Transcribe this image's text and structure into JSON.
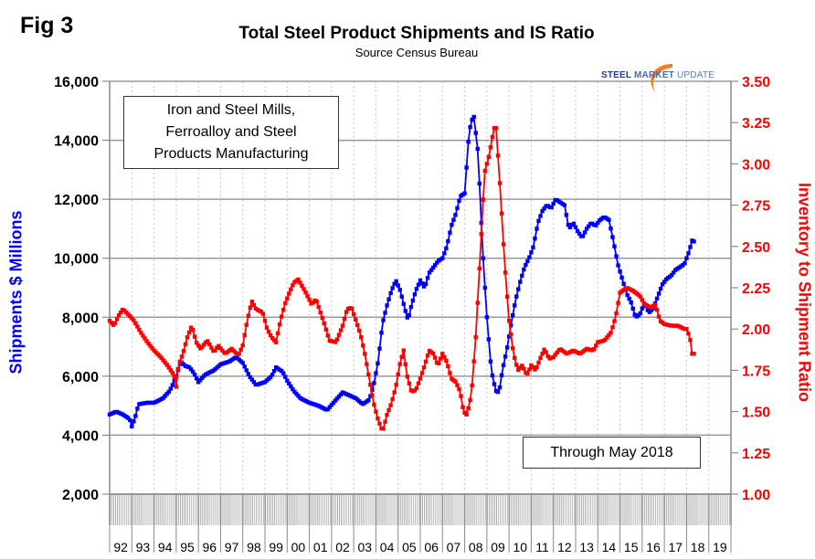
{
  "header": {
    "fig_label": "Fig 3",
    "title": "Total Steel Product Shipments and IS Ratio",
    "subtitle": "Source Census Bureau",
    "logo": {
      "word1": "STEEL",
      "word2": "MARKET",
      "word3": "UPDATE"
    }
  },
  "annotations": {
    "industry_box": [
      "Iron and Steel Mills,",
      "Ferroalloy and Steel",
      "Products Manufacturing"
    ],
    "through_box": "Through May 2018"
  },
  "colors": {
    "shipments": "#0000ff",
    "ratio": "#ff0000",
    "grid": "#999999"
  },
  "chart_data": {
    "type": "line",
    "title": "Total Steel Product Shipments and IS Ratio",
    "subtitle": "Source Census Bureau",
    "ylabel": "Shipments $ Millions",
    "y2label": "Inventory to Shipment Ratio",
    "ylim": [
      2000,
      16000
    ],
    "y2lim": [
      1.0,
      3.5
    ],
    "yticks": [
      "2,000",
      "4,000",
      "6,000",
      "8,000",
      "10,000",
      "12,000",
      "14,000",
      "16,000"
    ],
    "y2ticks": [
      "1.00",
      "1.25",
      "1.50",
      "1.75",
      "2.00",
      "2.25",
      "2.50",
      "2.75",
      "3.00",
      "3.25",
      "3.50"
    ],
    "xticks": [
      "92",
      "93",
      "94",
      "95",
      "96",
      "97",
      "98",
      "99",
      "00",
      "01",
      "02",
      "03",
      "04",
      "05",
      "06",
      "07",
      "08",
      "09",
      "10",
      "11",
      "12",
      "13",
      "14",
      "15",
      "16",
      "17",
      "18",
      "19"
    ],
    "xrange": [
      1992,
      2020
    ],
    "grid": true,
    "legend": "none",
    "series": [
      {
        "name": "Shipments $ Millions",
        "axis": "left",
        "color": "#0000ff",
        "points": [
          [
            1992.0,
            4700
          ],
          [
            1992.3,
            4800
          ],
          [
            1992.6,
            4700
          ],
          [
            1992.9,
            4550
          ],
          [
            1993.0,
            4300
          ],
          [
            1993.15,
            4600
          ],
          [
            1993.3,
            5050
          ],
          [
            1993.7,
            5100
          ],
          [
            1994.0,
            5100
          ],
          [
            1994.4,
            5250
          ],
          [
            1994.7,
            5500
          ],
          [
            1994.9,
            5800
          ],
          [
            1995.0,
            6000
          ],
          [
            1995.2,
            6500
          ],
          [
            1995.4,
            6350
          ],
          [
            1995.6,
            6300
          ],
          [
            1995.8,
            6100
          ],
          [
            1996.0,
            5800
          ],
          [
            1996.3,
            6050
          ],
          [
            1996.7,
            6200
          ],
          [
            1997.0,
            6400
          ],
          [
            1997.4,
            6500
          ],
          [
            1997.7,
            6650
          ],
          [
            1998.0,
            6450
          ],
          [
            1998.3,
            6000
          ],
          [
            1998.6,
            5700
          ],
          [
            1999.0,
            5800
          ],
          [
            1999.3,
            6000
          ],
          [
            1999.5,
            6300
          ],
          [
            1999.8,
            6150
          ],
          [
            2000.0,
            5850
          ],
          [
            2000.3,
            5500
          ],
          [
            2000.6,
            5250
          ],
          [
            2001.0,
            5100
          ],
          [
            2001.4,
            5000
          ],
          [
            2001.8,
            4850
          ],
          [
            2002.2,
            5200
          ],
          [
            2002.5,
            5450
          ],
          [
            2002.8,
            5350
          ],
          [
            2003.1,
            5250
          ],
          [
            2003.4,
            5050
          ],
          [
            2003.7,
            5200
          ],
          [
            2003.9,
            5700
          ],
          [
            2004.1,
            6500
          ],
          [
            2004.3,
            7800
          ],
          [
            2004.5,
            8400
          ],
          [
            2004.7,
            8900
          ],
          [
            2004.9,
            9250
          ],
          [
            2005.1,
            8900
          ],
          [
            2005.3,
            8300
          ],
          [
            2005.45,
            7900
          ],
          [
            2005.6,
            8400
          ],
          [
            2005.8,
            8900
          ],
          [
            2006.0,
            9250
          ],
          [
            2006.2,
            9000
          ],
          [
            2006.4,
            9500
          ],
          [
            2006.6,
            9700
          ],
          [
            2006.8,
            9900
          ],
          [
            2007.0,
            10000
          ],
          [
            2007.2,
            10400
          ],
          [
            2007.4,
            11100
          ],
          [
            2007.6,
            11500
          ],
          [
            2007.8,
            12100
          ],
          [
            2008.0,
            12200
          ],
          [
            2008.2,
            14300
          ],
          [
            2008.4,
            14900
          ],
          [
            2008.6,
            13600
          ],
          [
            2008.8,
            10400
          ],
          [
            2009.0,
            8000
          ],
          [
            2009.2,
            6200
          ],
          [
            2009.4,
            5500
          ],
          [
            2009.55,
            5450
          ],
          [
            2009.7,
            6200
          ],
          [
            2009.9,
            6900
          ],
          [
            2010.1,
            7800
          ],
          [
            2010.3,
            8600
          ],
          [
            2010.5,
            9200
          ],
          [
            2010.7,
            9700
          ],
          [
            2010.9,
            10000
          ],
          [
            2011.1,
            10400
          ],
          [
            2011.3,
            11200
          ],
          [
            2011.5,
            11600
          ],
          [
            2011.7,
            11800
          ],
          [
            2011.9,
            11700
          ],
          [
            2012.1,
            12000
          ],
          [
            2012.3,
            11900
          ],
          [
            2012.5,
            11800
          ],
          [
            2012.7,
            11000
          ],
          [
            2012.9,
            11200
          ],
          [
            2013.1,
            10900
          ],
          [
            2013.3,
            10700
          ],
          [
            2013.5,
            11000
          ],
          [
            2013.7,
            11200
          ],
          [
            2013.9,
            11100
          ],
          [
            2014.1,
            11300
          ],
          [
            2014.3,
            11400
          ],
          [
            2014.5,
            11300
          ],
          [
            2014.7,
            10600
          ],
          [
            2014.9,
            9800
          ],
          [
            2015.1,
            9300
          ],
          [
            2015.3,
            8800
          ],
          [
            2015.5,
            8500
          ],
          [
            2015.7,
            8000
          ],
          [
            2015.9,
            8100
          ],
          [
            2016.1,
            8500
          ],
          [
            2016.3,
            8150
          ],
          [
            2016.5,
            8300
          ],
          [
            2016.7,
            8700
          ],
          [
            2016.9,
            9100
          ],
          [
            2017.1,
            9300
          ],
          [
            2017.3,
            9400
          ],
          [
            2017.5,
            9600
          ],
          [
            2017.7,
            9700
          ],
          [
            2017.9,
            9800
          ],
          [
            2018.1,
            10200
          ],
          [
            2018.25,
            10600
          ],
          [
            2018.38,
            10550
          ]
        ]
      },
      {
        "name": "Inventory to Shipment Ratio",
        "axis": "right",
        "color": "#ff0000",
        "points": [
          [
            1992.0,
            2.05
          ],
          [
            1992.2,
            2.02
          ],
          [
            1992.4,
            2.08
          ],
          [
            1992.6,
            2.12
          ],
          [
            1992.9,
            2.08
          ],
          [
            1993.1,
            2.05
          ],
          [
            1993.4,
            1.98
          ],
          [
            1993.7,
            1.92
          ],
          [
            1994.0,
            1.87
          ],
          [
            1994.3,
            1.83
          ],
          [
            1994.6,
            1.78
          ],
          [
            1994.9,
            1.72
          ],
          [
            1995.0,
            1.65
          ],
          [
            1995.1,
            1.78
          ],
          [
            1995.3,
            1.85
          ],
          [
            1995.5,
            1.95
          ],
          [
            1995.7,
            2.02
          ],
          [
            1995.9,
            1.92
          ],
          [
            1996.1,
            1.88
          ],
          [
            1996.4,
            1.93
          ],
          [
            1996.7,
            1.86
          ],
          [
            1996.9,
            1.9
          ],
          [
            1997.2,
            1.85
          ],
          [
            1997.5,
            1.88
          ],
          [
            1997.8,
            1.84
          ],
          [
            1998.0,
            1.9
          ],
          [
            1998.2,
            2.05
          ],
          [
            1998.4,
            2.17
          ],
          [
            1998.6,
            2.12
          ],
          [
            1998.9,
            2.1
          ],
          [
            1999.1,
            2.0
          ],
          [
            1999.3,
            1.95
          ],
          [
            1999.5,
            1.92
          ],
          [
            1999.7,
            2.05
          ],
          [
            1999.9,
            2.15
          ],
          [
            2000.1,
            2.22
          ],
          [
            2000.3,
            2.28
          ],
          [
            2000.5,
            2.3
          ],
          [
            2000.8,
            2.23
          ],
          [
            2001.1,
            2.15
          ],
          [
            2001.3,
            2.18
          ],
          [
            2001.5,
            2.1
          ],
          [
            2001.7,
            2.02
          ],
          [
            2001.9,
            1.93
          ],
          [
            2002.2,
            1.92
          ],
          [
            2002.5,
            2.02
          ],
          [
            2002.7,
            2.12
          ],
          [
            2002.9,
            2.13
          ],
          [
            2003.1,
            2.05
          ],
          [
            2003.3,
            1.97
          ],
          [
            2003.5,
            1.85
          ],
          [
            2003.7,
            1.7
          ],
          [
            2003.9,
            1.55
          ],
          [
            2004.1,
            1.45
          ],
          [
            2004.3,
            1.38
          ],
          [
            2004.5,
            1.48
          ],
          [
            2004.7,
            1.55
          ],
          [
            2004.9,
            1.65
          ],
          [
            2005.1,
            1.8
          ],
          [
            2005.25,
            1.87
          ],
          [
            2005.4,
            1.72
          ],
          [
            2005.6,
            1.62
          ],
          [
            2005.8,
            1.63
          ],
          [
            2006.0,
            1.7
          ],
          [
            2006.2,
            1.78
          ],
          [
            2006.4,
            1.87
          ],
          [
            2006.6,
            1.85
          ],
          [
            2006.8,
            1.78
          ],
          [
            2007.0,
            1.85
          ],
          [
            2007.2,
            1.8
          ],
          [
            2007.4,
            1.7
          ],
          [
            2007.6,
            1.68
          ],
          [
            2007.8,
            1.62
          ],
          [
            2007.95,
            1.5
          ],
          [
            2008.1,
            1.48
          ],
          [
            2008.3,
            1.6
          ],
          [
            2008.5,
            1.95
          ],
          [
            2008.7,
            2.45
          ],
          [
            2008.9,
            2.95
          ],
          [
            2009.1,
            3.05
          ],
          [
            2009.3,
            3.2
          ],
          [
            2009.4,
            3.25
          ],
          [
            2009.6,
            2.85
          ],
          [
            2009.8,
            2.4
          ],
          [
            2010.0,
            2.05
          ],
          [
            2010.2,
            1.85
          ],
          [
            2010.4,
            1.75
          ],
          [
            2010.6,
            1.78
          ],
          [
            2010.8,
            1.72
          ],
          [
            2011.0,
            1.78
          ],
          [
            2011.2,
            1.75
          ],
          [
            2011.4,
            1.82
          ],
          [
            2011.6,
            1.88
          ],
          [
            2011.8,
            1.82
          ],
          [
            2012.0,
            1.83
          ],
          [
            2012.3,
            1.88
          ],
          [
            2012.6,
            1.85
          ],
          [
            2012.9,
            1.87
          ],
          [
            2013.2,
            1.85
          ],
          [
            2013.5,
            1.88
          ],
          [
            2013.8,
            1.87
          ],
          [
            2014.0,
            1.92
          ],
          [
            2014.3,
            1.93
          ],
          [
            2014.6,
            1.98
          ],
          [
            2014.8,
            2.07
          ],
          [
            2015.0,
            2.22
          ],
          [
            2015.3,
            2.25
          ],
          [
            2015.6,
            2.23
          ],
          [
            2015.9,
            2.2
          ],
          [
            2016.1,
            2.15
          ],
          [
            2016.4,
            2.13
          ],
          [
            2016.6,
            2.15
          ],
          [
            2016.8,
            2.05
          ],
          [
            2017.0,
            2.03
          ],
          [
            2017.3,
            2.02
          ],
          [
            2017.6,
            2.02
          ],
          [
            2017.9,
            2.0
          ],
          [
            2018.0,
            2.0
          ],
          [
            2018.15,
            1.95
          ],
          [
            2018.25,
            1.85
          ],
          [
            2018.38,
            1.85
          ]
        ]
      }
    ]
  }
}
